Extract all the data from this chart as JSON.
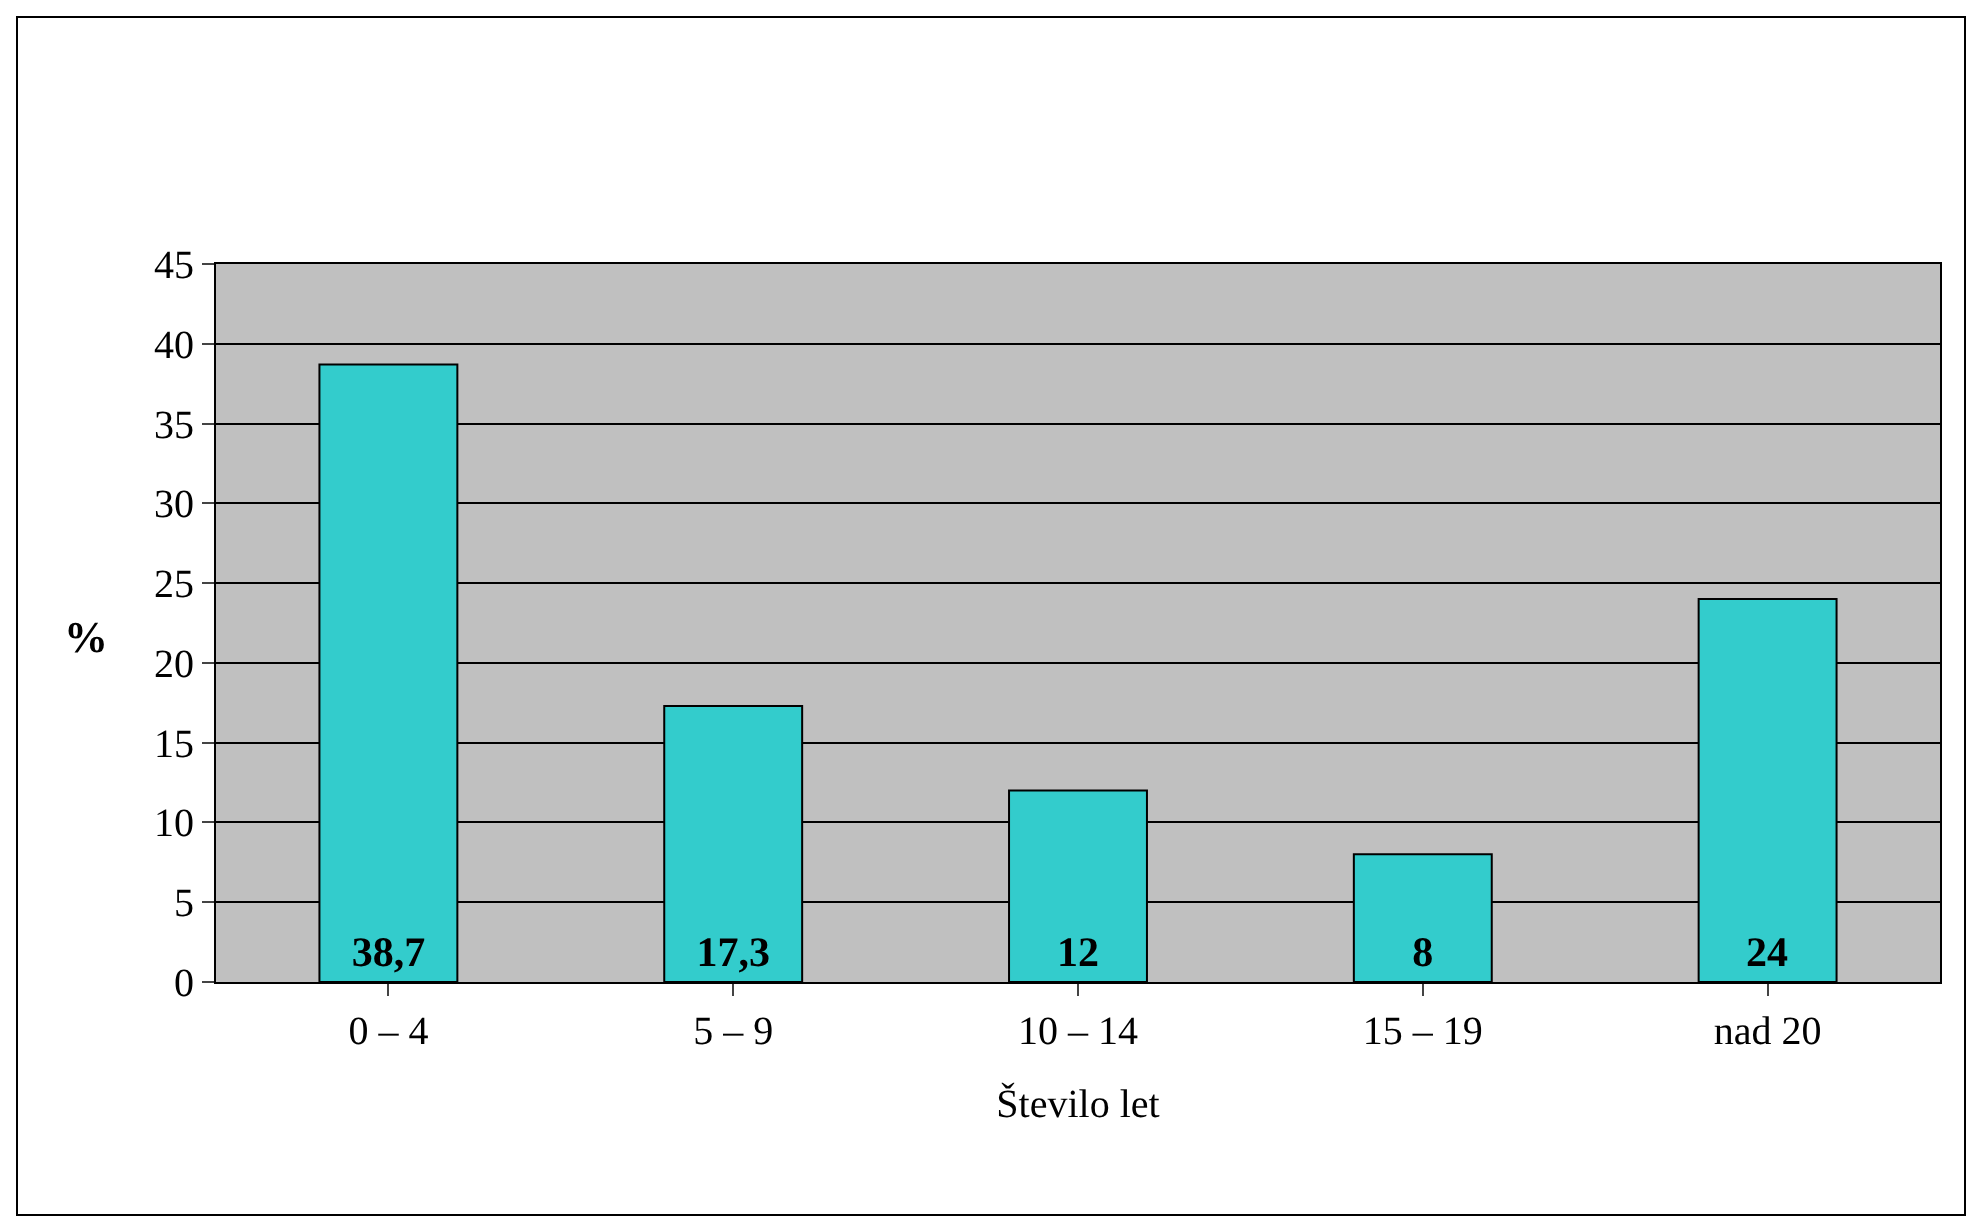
{
  "chart_data": {
    "type": "bar",
    "xlabel": "Število let",
    "ylabel": "%",
    "categories": [
      "0 – 4",
      "5 – 9",
      "10 – 14",
      "15 – 19",
      "nad 20"
    ],
    "values": [
      38.7,
      17.3,
      12,
      8,
      24
    ],
    "value_labels": [
      "38,7",
      "17,3",
      "12",
      "8",
      "24"
    ],
    "color": "#33cccc",
    "ylim": [
      0,
      45
    ],
    "yticks": [
      0,
      5,
      10,
      15,
      20,
      25,
      30,
      35,
      40,
      45
    ],
    "grid": "y"
  }
}
